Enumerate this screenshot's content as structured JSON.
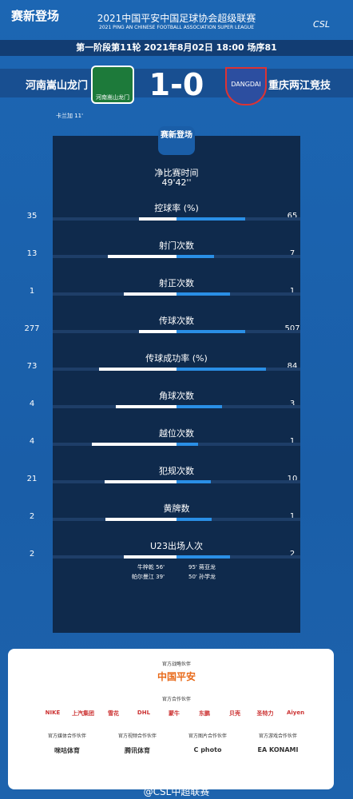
{
  "header": {
    "badge": "赛新登场",
    "title": "2021中国平安中国足球协会超级联赛",
    "subtitle": "2021 PING AN CHINESE FOOTBALL ASSOCIATION SUPER LEAGUE",
    "logo": "CSL"
  },
  "match_info": "第一阶段第11轮  2021年8月02日 18:00 场序81",
  "home": {
    "name": "河南嵩山龙门",
    "badge": "河南嵩山龙门"
  },
  "away": {
    "name": "重庆两江竞技",
    "badge": "DANGDAI"
  },
  "score": "1-0",
  "scorers": "卡兰加  11'",
  "panel_badge": "赛新登场",
  "net_time": {
    "label": "净比赛时间",
    "value": "49'42''"
  },
  "stats": [
    {
      "label": "控球率 (%)",
      "home": 35,
      "away": 65
    },
    {
      "label": "射门次数",
      "home": 13,
      "away": 7
    },
    {
      "label": "射正次数",
      "home": 1,
      "away": 1
    },
    {
      "label": "传球次数",
      "home": 277,
      "away": 507
    },
    {
      "label": "传球成功率 (%)",
      "home": 73,
      "away": 84
    },
    {
      "label": "角球次数",
      "home": 4,
      "away": 3
    },
    {
      "label": "越位次数",
      "home": 4,
      "away": 1
    },
    {
      "label": "犯规次数",
      "home": 21,
      "away": 10
    },
    {
      "label": "黄牌数",
      "home": 2,
      "away": 1
    },
    {
      "label": "U23出场人次",
      "home": 2,
      "away": 2
    }
  ],
  "u23": {
    "home": [
      "牛梓乾  56'",
      "帕尔曼江  39'"
    ],
    "away": [
      "95'  蒋亚龙",
      "50'  孙学龙"
    ]
  },
  "sponsors": {
    "strategic_title": "官方战略伙伴",
    "strategic": "中国平安",
    "partners_title": "官方合作伙伴",
    "partners": [
      "NIKE",
      "上汽集团",
      "雪花",
      "DHL",
      "蒙牛",
      "东鹏",
      "贝壳",
      "圣特力",
      "Aiyen"
    ],
    "suppliers": [
      {
        "title": "官方媒体合作伙伴",
        "name": "咪咕体育"
      },
      {
        "title": "官方视频合作伙伴",
        "name": "腾讯体育"
      },
      {
        "title": "官方图片合作伙伴",
        "name": "C photo"
      },
      {
        "title": "官方游戏合作伙伴",
        "name": "EA   KONAMI"
      }
    ]
  },
  "footer": "@CSL中超联赛"
}
